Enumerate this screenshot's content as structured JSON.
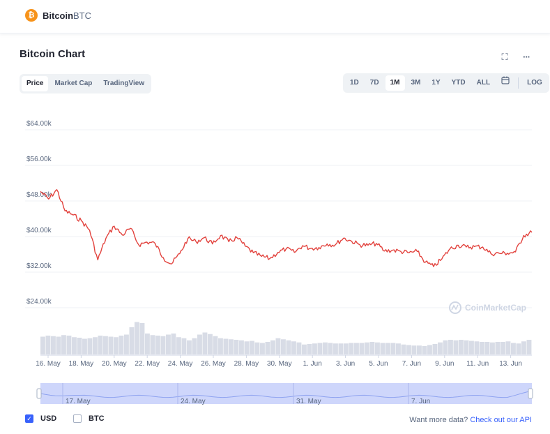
{
  "header": {
    "coin_name": "Bitcoin",
    "coin_symbol": "BTC",
    "logo_glyph": "₿",
    "logo_color": "#f7931a"
  },
  "chart_title": "Bitcoin Chart",
  "icons": {
    "fullscreen": "⛶",
    "more": "···",
    "calendar": "📅"
  },
  "view_tabs": [
    "Price",
    "Market Cap",
    "TradingView"
  ],
  "active_view": "Price",
  "range_tabs": [
    "1D",
    "7D",
    "1M",
    "3M",
    "1Y",
    "YTD",
    "ALL"
  ],
  "active_range": "1M",
  "log_label": "LOG",
  "watermark": "CoinMarketCap",
  "colors": {
    "price_line": "#e2423d",
    "volume": "#d8dce6",
    "navigator": "#c9d2fb",
    "accent": "#3861fb"
  },
  "chart_data": {
    "type": "line",
    "currency": "USD",
    "y_ticks": [
      "$24.00k",
      "$32.00k",
      "$40.00k",
      "$48.00k",
      "$56.00k",
      "$64.00k"
    ],
    "ylim": [
      20000,
      68000
    ],
    "x_ticks": [
      "16. May",
      "18. May",
      "20. May",
      "22. May",
      "24. May",
      "26. May",
      "28. May",
      "30. May",
      "1. Jun",
      "3. Jun",
      "5. Jun",
      "7. Jun",
      "9. Jun",
      "11. Jun",
      "13. Jun"
    ],
    "price_points": [
      {
        "x": "2021-05-16",
        "y": 49200
      },
      {
        "x": "2021-05-16T12",
        "y": 47500
      },
      {
        "x": "2021-05-17",
        "y": 49600
      },
      {
        "x": "2021-05-17T12",
        "y": 44800
      },
      {
        "x": "2021-05-18",
        "y": 43900
      },
      {
        "x": "2021-05-18T12",
        "y": 42600
      },
      {
        "x": "2021-05-19",
        "y": 40500
      },
      {
        "x": "2021-05-19T12",
        "y": 33800
      },
      {
        "x": "2021-05-20",
        "y": 38700
      },
      {
        "x": "2021-05-20T12",
        "y": 41400
      },
      {
        "x": "2021-05-21",
        "y": 39400
      },
      {
        "x": "2021-05-21T12",
        "y": 40900
      },
      {
        "x": "2021-05-22",
        "y": 37200
      },
      {
        "x": "2021-05-22T12",
        "y": 37800
      },
      {
        "x": "2021-05-23",
        "y": 37500
      },
      {
        "x": "2021-05-23T12",
        "y": 34300
      },
      {
        "x": "2021-05-24",
        "y": 32900
      },
      {
        "x": "2021-05-24T12",
        "y": 35200
      },
      {
        "x": "2021-05-25",
        "y": 38600
      },
      {
        "x": "2021-05-25T12",
        "y": 37900
      },
      {
        "x": "2021-05-26",
        "y": 38800
      },
      {
        "x": "2021-05-26T12",
        "y": 37400
      },
      {
        "x": "2021-05-27",
        "y": 39300
      },
      {
        "x": "2021-05-27T12",
        "y": 37900
      },
      {
        "x": "2021-05-28",
        "y": 38800
      },
      {
        "x": "2021-05-28T12",
        "y": 36900
      },
      {
        "x": "2021-05-29",
        "y": 35400
      },
      {
        "x": "2021-05-29T12",
        "y": 34600
      },
      {
        "x": "2021-05-30",
        "y": 34100
      },
      {
        "x": "2021-05-30T12",
        "y": 35500
      },
      {
        "x": "2021-05-31",
        "y": 36300
      },
      {
        "x": "2021-05-31T12",
        "y": 35500
      },
      {
        "x": "2021-06-01",
        "y": 37000
      },
      {
        "x": "2021-06-01T12",
        "y": 36400
      },
      {
        "x": "2021-06-02",
        "y": 36600
      },
      {
        "x": "2021-06-02T12",
        "y": 37400
      },
      {
        "x": "2021-06-03",
        "y": 37200
      },
      {
        "x": "2021-06-03T12",
        "y": 38700
      },
      {
        "x": "2021-06-04",
        "y": 38000
      },
      {
        "x": "2021-06-04T12",
        "y": 37200
      },
      {
        "x": "2021-06-05",
        "y": 37100
      },
      {
        "x": "2021-06-05T12",
        "y": 37500
      },
      {
        "x": "2021-06-06",
        "y": 35800
      },
      {
        "x": "2021-06-06T12",
        "y": 36000
      },
      {
        "x": "2021-06-07",
        "y": 35700
      },
      {
        "x": "2021-06-07T12",
        "y": 35400
      },
      {
        "x": "2021-06-08",
        "y": 35700
      },
      {
        "x": "2021-06-08T12",
        "y": 33300
      },
      {
        "x": "2021-06-09",
        "y": 32300
      },
      {
        "x": "2021-06-09T12",
        "y": 34000
      },
      {
        "x": "2021-06-10",
        "y": 36300
      },
      {
        "x": "2021-06-10T12",
        "y": 37100
      },
      {
        "x": "2021-06-11",
        "y": 36700
      },
      {
        "x": "2021-06-11T12",
        "y": 36800
      },
      {
        "x": "2021-06-12",
        "y": 36700
      },
      {
        "x": "2021-06-12T12",
        "y": 35200
      },
      {
        "x": "2021-06-13",
        "y": 35300
      },
      {
        "x": "2021-06-13T12",
        "y": 35300
      },
      {
        "x": "2021-06-14",
        "y": 35600
      },
      {
        "x": "2021-06-14T12",
        "y": 39300
      },
      {
        "x": "2021-06-15",
        "y": 40000
      }
    ],
    "volume_relative": [
      0.34,
      0.36,
      0.35,
      0.34,
      0.37,
      0.36,
      0.33,
      0.32,
      0.3,
      0.31,
      0.33,
      0.36,
      0.35,
      0.34,
      0.33,
      0.36,
      0.38,
      0.52,
      0.62,
      0.6,
      0.4,
      0.37,
      0.36,
      0.35,
      0.38,
      0.4,
      0.33,
      0.31,
      0.27,
      0.31,
      0.38,
      0.42,
      0.39,
      0.35,
      0.31,
      0.3,
      0.29,
      0.28,
      0.27,
      0.25,
      0.26,
      0.23,
      0.22,
      0.24,
      0.27,
      0.31,
      0.29,
      0.27,
      0.25,
      0.23,
      0.19,
      0.2,
      0.21,
      0.22,
      0.23,
      0.22,
      0.21,
      0.21,
      0.21,
      0.22,
      0.22,
      0.22,
      0.23,
      0.24,
      0.23,
      0.22,
      0.22,
      0.22,
      0.21,
      0.19,
      0.18,
      0.17,
      0.17,
      0.16,
      0.18,
      0.2,
      0.23,
      0.27,
      0.28,
      0.27,
      0.28,
      0.27,
      0.26,
      0.25,
      0.24,
      0.24,
      0.23,
      0.24,
      0.24,
      0.25,
      0.22,
      0.21,
      0.25,
      0.28
    ],
    "navigator_ticks": [
      "17. May",
      "24. May",
      "31. May",
      "7. Jun"
    ]
  },
  "legend": [
    {
      "label": "USD",
      "checked": true
    },
    {
      "label": "BTC",
      "checked": false
    }
  ],
  "footer": {
    "prompt": "Want more data?",
    "link": "Check out our API"
  }
}
